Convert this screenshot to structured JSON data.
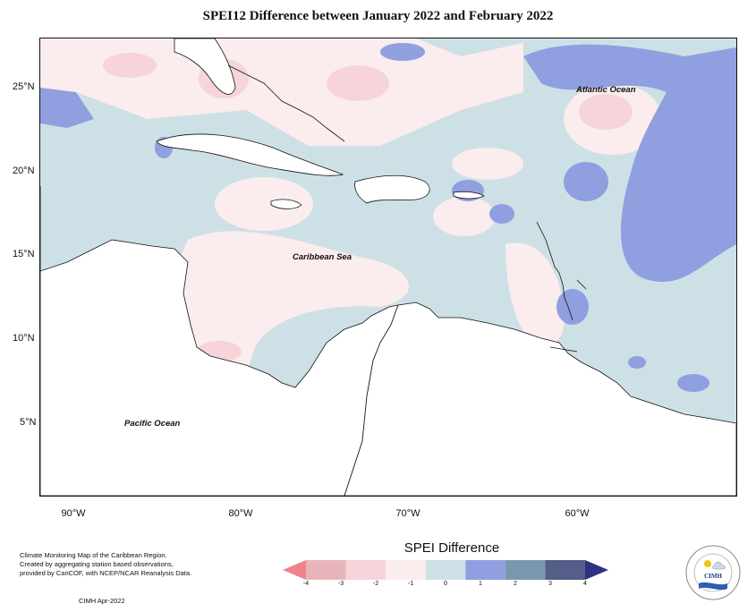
{
  "title": "SPEI12 Difference between January 2022 and February 2022",
  "axes": {
    "y_labels": [
      "25°N",
      "20°N",
      "15°N",
      "10°N",
      "5°N"
    ],
    "x_labels": [
      "90°W",
      "80°W",
      "70°W",
      "60°W"
    ]
  },
  "map_labels": {
    "atlantic": "Atlantic Ocean",
    "caribbean": "Caribbean Sea",
    "pacific": "Pacific Ocean"
  },
  "legend": {
    "title": "SPEI Difference",
    "ticks": [
      "-4",
      "-3",
      "-2",
      "-1",
      "0",
      "1",
      "2",
      "3",
      "4"
    ],
    "colors": [
      "#f0828a",
      "#e8b4bb",
      "#f7d4da",
      "#fbecee",
      "#cde0e6",
      "#909fdf",
      "#7a98ad",
      "#555e88",
      "#2e3183"
    ]
  },
  "credits": {
    "line1": "Climate Monitoring Map of the Caribbean Region.",
    "line2": "Created by aggregating station based observations,",
    "line3": "provided by CariCOF, with NCEP/NCAR Reanalysis Data.",
    "date": "CIMH Apr-2022"
  },
  "logo": {
    "text": "CIMH",
    "ring_text": "Caribbean Institute for Meteorology and Hydrology"
  }
}
